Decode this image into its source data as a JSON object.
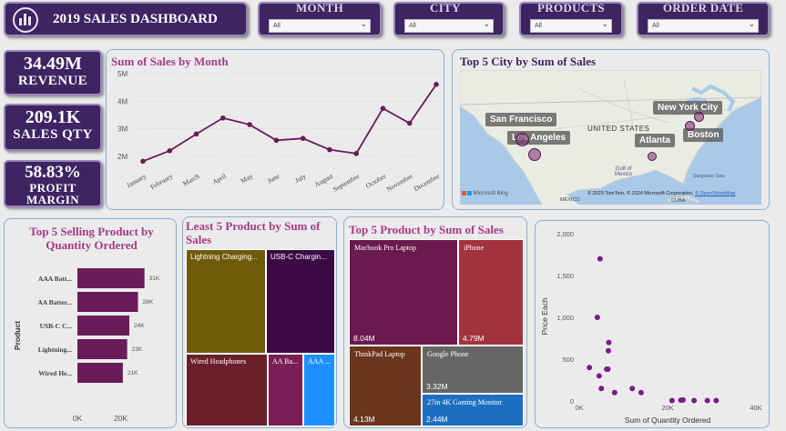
{
  "header": {
    "title": "2019 SALES DASHBOARD"
  },
  "slicers": [
    {
      "label": "MONTH",
      "value": "All"
    },
    {
      "label": "CITY",
      "value": "All"
    },
    {
      "label": "PRODUCTS",
      "value": "All"
    },
    {
      "label": "ORDER DATE",
      "value": "All"
    }
  ],
  "kpis": {
    "revenue": {
      "value": "34.49M",
      "label": "REVENUE"
    },
    "sales_qty": {
      "value": "209.1K",
      "label": "SALES QTY"
    },
    "profit": {
      "value": "58.83%",
      "label1": "PROFIT",
      "label2": "MARGIN"
    }
  },
  "colors": {
    "accent": "#3e2463",
    "line": "#6a1b5a",
    "title_pink": "#a63a8a",
    "panel_border": "#8aaedb"
  },
  "line_chart": {
    "title": "Sum of Sales by Month",
    "chart_data": {
      "type": "line",
      "categories": [
        "January",
        "February",
        "March",
        "April",
        "May",
        "June",
        "July",
        "August",
        "September",
        "October",
        "November",
        "December"
      ],
      "values": [
        1.82,
        2.2,
        2.81,
        3.39,
        3.15,
        2.58,
        2.65,
        2.24,
        2.1,
        3.74,
        3.2,
        4.61
      ],
      "ylim": [
        1.5,
        5.2
      ],
      "yticks": [
        2,
        3,
        4,
        5
      ],
      "ytick_labels": [
        "2M",
        "3M",
        "4M",
        "5M"
      ]
    }
  },
  "map": {
    "title": "Top 5 City by Sum of Sales",
    "country_label": "UNITED STATES",
    "gulf_label": "Gulf of\nMexico",
    "sea_label": "Sargasso Sea",
    "mexico_label": "MÉXICO",
    "cuba_label": "CUBA",
    "brand": "Microsoft Bing",
    "attribution_prefix": "© 2023 TomTom, © 2024 Microsoft Corporation, ",
    "attribution_link": "© OpenStreetMap",
    "cities": [
      "San Francisco",
      "Los Angeles",
      "New York City",
      "Boston",
      "Atlanta"
    ]
  },
  "top_qty": {
    "title": "Top 5 Selling Product by Quantity Ordered",
    "ylabel": "Product",
    "chart_data": {
      "type": "bar",
      "categories": [
        "AAA Batt...",
        "AA Batter...",
        "USB-C C...",
        "Lightning...",
        "Wired He..."
      ],
      "values": [
        31,
        28,
        24,
        23,
        21
      ],
      "value_labels": [
        "31K",
        "28K",
        "24K",
        "23K",
        "21K"
      ],
      "xlim": [
        0,
        40
      ],
      "xticks": [
        "0K",
        "20K"
      ]
    }
  },
  "least5": {
    "title": "Least 5 Product by Sum of Sales",
    "tiles": [
      {
        "label": "Lightning Charging...",
        "color": "#6f5a0a"
      },
      {
        "label": "USB-C Chargin...",
        "color": "#3b0a45"
      },
      {
        "label": "Wired Headphones",
        "color": "#6a1f2a"
      },
      {
        "label": "AA Ba...",
        "color": "#7a1e55"
      },
      {
        "label": "AAA ...",
        "color": "#1e90ff"
      }
    ]
  },
  "top5": {
    "title": "Top 5 Product by Sum of Sales",
    "tiles": [
      {
        "label": "Macbook Pro Laptop",
        "value": "8.04M",
        "color": "#6a1a4e"
      },
      {
        "label": "iPhone",
        "value": "4.79M",
        "color": "#a3323f"
      },
      {
        "label": "ThinkPad Laptop",
        "value": "4.13M",
        "color": "#6b351f"
      },
      {
        "label": "Google Phone",
        "value": "3.32M",
        "color": "#666666"
      },
      {
        "label": "27in 4K Gaming Monitor",
        "value": "2.44M",
        "color": "#1e6fbf"
      }
    ]
  },
  "scatter": {
    "xlabel": "Sum of Quantity Ordered",
    "ylabel": "Price Each",
    "chart_data": {
      "type": "scatter",
      "xlim": [
        0,
        40000
      ],
      "ylim": [
        0,
        2000
      ],
      "xtick_labels": [
        "0K",
        "20K",
        "40K"
      ],
      "ytick_labels": [
        "0",
        "500",
        "1,000",
        "1,500",
        "2,000"
      ],
      "points": [
        [
          4700,
          1700
        ],
        [
          4100,
          1000
        ],
        [
          6700,
          700
        ],
        [
          6600,
          600
        ],
        [
          6500,
          380
        ],
        [
          6200,
          380
        ],
        [
          4500,
          300
        ],
        [
          5000,
          150
        ],
        [
          2300,
          400
        ],
        [
          12000,
          150
        ],
        [
          14000,
          100
        ],
        [
          21000,
          5
        ],
        [
          23000,
          10
        ],
        [
          23500,
          12
        ],
        [
          26000,
          5
        ],
        [
          29000,
          5
        ],
        [
          31000,
          5
        ],
        [
          8000,
          100
        ]
      ]
    }
  }
}
